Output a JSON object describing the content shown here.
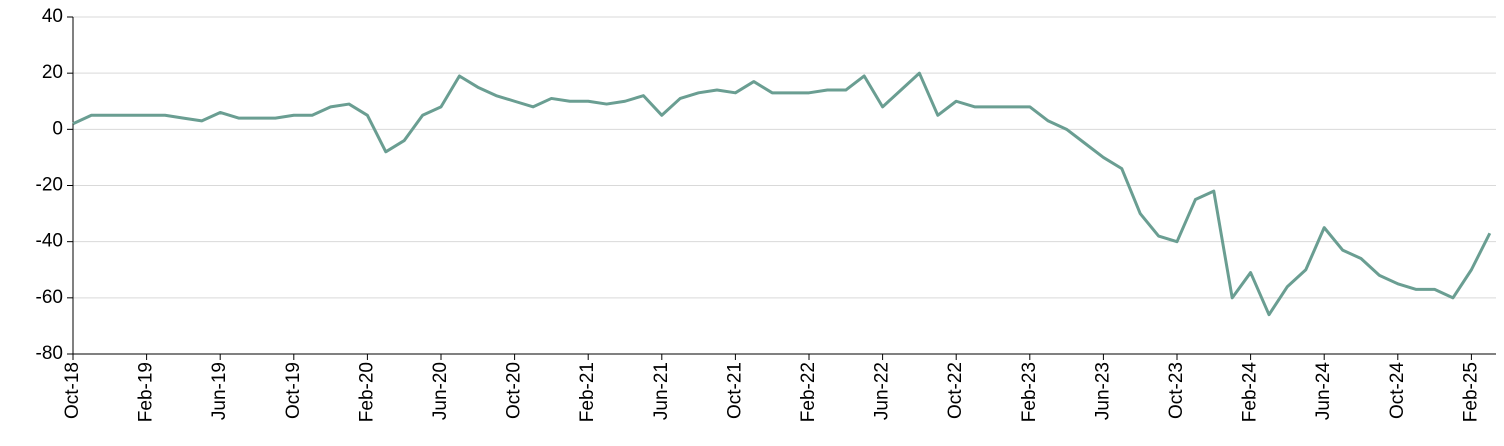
{
  "chart_data": {
    "type": "line",
    "x": [
      "Oct-18",
      "Nov-18",
      "Dec-18",
      "Jan-19",
      "Feb-19",
      "Mar-19",
      "Apr-19",
      "May-19",
      "Jun-19",
      "Jul-19",
      "Aug-19",
      "Sep-19",
      "Oct-19",
      "Nov-19",
      "Dec-19",
      "Jan-20",
      "Feb-20",
      "Mar-20",
      "Apr-20",
      "May-20",
      "Jun-20",
      "Jul-20",
      "Aug-20",
      "Sep-20",
      "Oct-20",
      "Nov-20",
      "Dec-20",
      "Jan-21",
      "Feb-21",
      "Mar-21",
      "Apr-21",
      "May-21",
      "Jun-21",
      "Jul-21",
      "Aug-21",
      "Sep-21",
      "Oct-21",
      "Nov-21",
      "Dec-21",
      "Jan-22",
      "Feb-22",
      "Mar-22",
      "Apr-22",
      "May-22",
      "Jun-22",
      "Jul-22",
      "Aug-22",
      "Sep-22",
      "Oct-22",
      "Nov-22",
      "Dec-22",
      "Jan-23",
      "Feb-23",
      "Mar-23",
      "Apr-23",
      "May-23",
      "Jun-23",
      "Jul-23",
      "Aug-23",
      "Sep-23",
      "Oct-23",
      "Nov-23",
      "Dec-23",
      "Jan-24",
      "Feb-24",
      "Mar-24",
      "Apr-24",
      "May-24",
      "Jun-24",
      "Jul-24",
      "Aug-24",
      "Sep-24",
      "Oct-24",
      "Nov-24",
      "Dec-24",
      "Jan-25",
      "Feb-25",
      "Mar-25"
    ],
    "series": [
      {
        "color": "#6a9e92",
        "values": [
          2,
          5,
          5,
          5,
          5,
          5,
          4,
          3,
          6,
          4,
          4,
          4,
          5,
          5,
          8,
          9,
          5,
          -8,
          -4,
          5,
          8,
          19,
          15,
          12,
          10,
          8,
          11,
          10,
          10,
          9,
          10,
          12,
          5,
          11,
          13,
          14,
          13,
          17,
          13,
          13,
          13,
          14,
          14,
          19,
          8,
          14,
          20,
          5,
          10,
          8,
          8,
          8,
          8,
          3,
          0,
          -5,
          -10,
          -14,
          -30,
          -38,
          -40,
          -25,
          -22,
          -60,
          -51,
          -66,
          -56,
          -50,
          -35,
          -43,
          -46,
          -52,
          -55,
          -57,
          -57,
          -60,
          -50,
          -37
        ]
      }
    ],
    "xticks": [
      "Oct-18",
      "Feb-19",
      "Jun-19",
      "Oct-19",
      "Feb-20",
      "Jun-20",
      "Oct-20",
      "Feb-21",
      "Jun-21",
      "Oct-21",
      "Feb-22",
      "Jun-22",
      "Oct-22",
      "Feb-23",
      "Jun-23",
      "Oct-23",
      "Feb-24",
      "Jun-24",
      "Oct-24",
      "Feb-25"
    ],
    "ylim": [
      -80,
      40
    ],
    "yticks": [
      -80,
      -60,
      -40,
      -20,
      0,
      20,
      40
    ],
    "grid": true
  }
}
